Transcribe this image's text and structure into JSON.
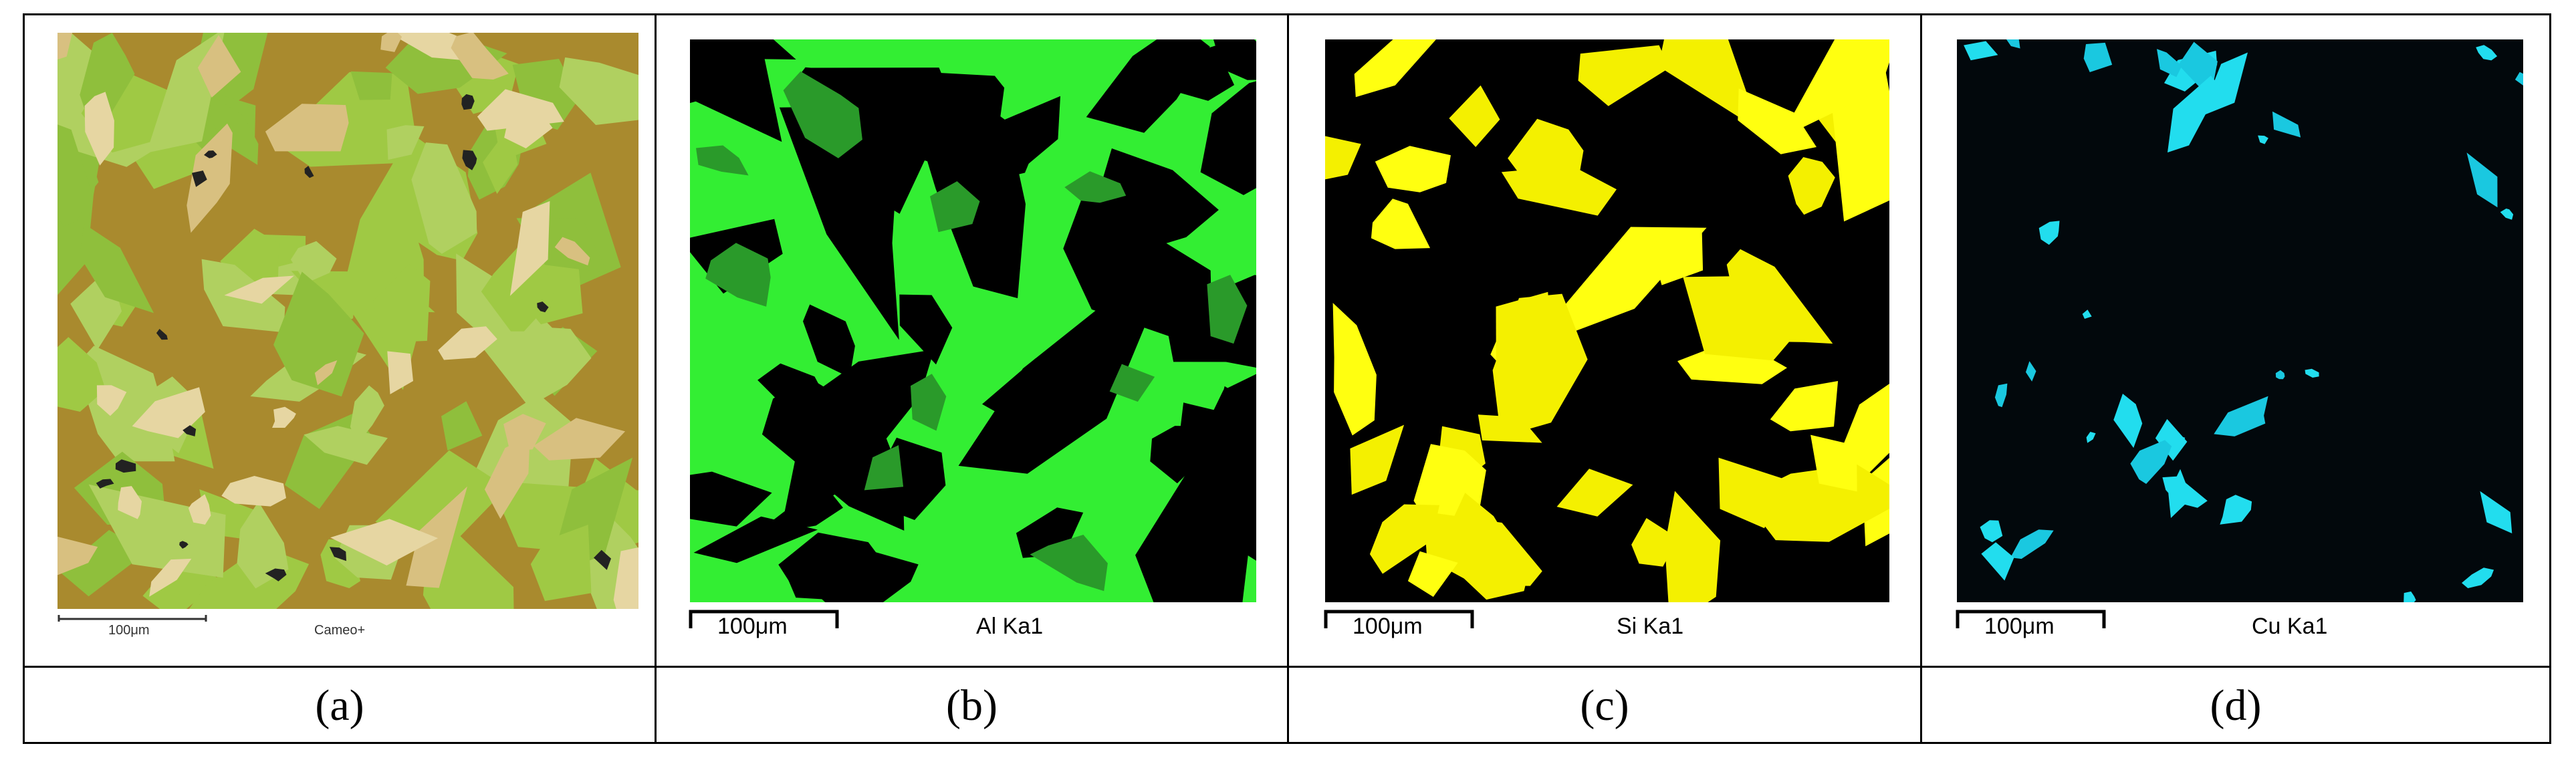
{
  "panels": [
    {
      "label": "(a)",
      "scale_bar": "100μm",
      "caption": "Cameo+"
    },
    {
      "label": "(b)",
      "scale_bar": "100μm",
      "caption": "Al Ka1"
    },
    {
      "label": "(c)",
      "scale_bar": "100μm",
      "caption": "Si Ka1"
    },
    {
      "label": "(d)",
      "scale_bar": "100μm",
      "caption": "Cu Ka1"
    }
  ]
}
